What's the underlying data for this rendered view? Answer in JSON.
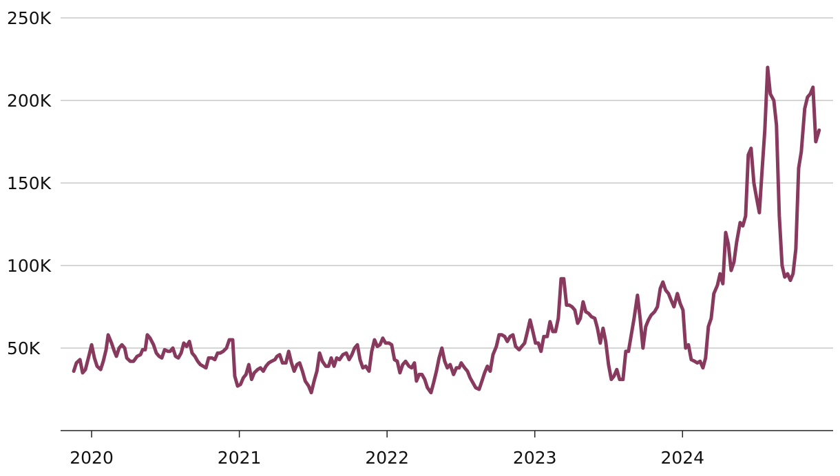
{
  "chart_data": {
    "type": "line",
    "x": [
      2019.879,
      2019.897,
      2019.921,
      2019.939,
      2019.958,
      2019.981,
      2020.0,
      2020.019,
      2020.037,
      2020.061,
      2020.079,
      2020.098,
      2020.112,
      2020.135,
      2020.154,
      2020.168,
      2020.186,
      2020.205,
      2020.224,
      2020.238,
      2020.261,
      2020.284,
      2020.308,
      2020.331,
      2020.345,
      2020.363,
      2020.377,
      2020.396,
      2020.419,
      2020.438,
      2020.457,
      2020.475,
      2020.494,
      2020.517,
      2020.531,
      2020.55,
      2020.568,
      2020.587,
      2020.606,
      2020.624,
      2020.643,
      2020.662,
      2020.68,
      2020.699,
      2020.718,
      2020.736,
      2020.755,
      2020.774,
      2020.792,
      2020.815,
      2020.834,
      2020.853,
      2020.871,
      2020.89,
      2020.913,
      2020.932,
      2020.955,
      2020.969,
      2020.988,
      2021.008,
      2021.027,
      2021.045,
      2021.064,
      2021.083,
      2021.101,
      2021.124,
      2021.143,
      2021.162,
      2021.18,
      2021.199,
      2021.218,
      2021.241,
      2021.255,
      2021.273,
      2021.292,
      2021.315,
      2021.334,
      2021.353,
      2021.371,
      2021.39,
      2021.408,
      2021.427,
      2021.446,
      2021.469,
      2021.487,
      2021.506,
      2021.525,
      2021.543,
      2021.562,
      2021.585,
      2021.604,
      2021.622,
      2021.641,
      2021.659,
      2021.678,
      2021.701,
      2021.724,
      2021.743,
      2021.762,
      2021.78,
      2021.799,
      2021.817,
      2021.836,
      2021.855,
      2021.878,
      2021.896,
      2021.915,
      2021.934,
      2021.952,
      2021.971,
      2021.99,
      2022.013,
      2022.031,
      2022.05,
      2022.069,
      2022.087,
      2022.106,
      2022.125,
      2022.148,
      2022.166,
      2022.185,
      2022.199,
      2022.217,
      2022.236,
      2022.255,
      2022.273,
      2022.297,
      2022.315,
      2022.334,
      2022.352,
      2022.371,
      2022.39,
      2022.408,
      2022.427,
      2022.45,
      2022.469,
      2022.488,
      2022.502,
      2022.525,
      2022.544,
      2022.562,
      2022.581,
      2022.6,
      2022.623,
      2022.642,
      2022.66,
      2022.679,
      2022.698,
      2022.717,
      2022.74,
      2022.758,
      2022.777,
      2022.796,
      2022.814,
      2022.833,
      2022.852,
      2022.87,
      2022.894,
      2022.912,
      2022.931,
      2022.95,
      2022.968,
      2022.987,
      2023.005,
      2023.024,
      2023.042,
      2023.061,
      2023.084,
      2023.103,
      2023.122,
      2023.14,
      2023.159,
      2023.178,
      2023.196,
      2023.215,
      2023.234,
      2023.252,
      2023.271,
      2023.29,
      2023.308,
      2023.327,
      2023.345,
      2023.364,
      2023.383,
      2023.406,
      2023.424,
      2023.443,
      2023.462,
      2023.48,
      2023.499,
      2023.518,
      2023.536,
      2023.555,
      2023.574,
      2023.597,
      2023.616,
      2023.634,
      2023.653,
      2023.672,
      2023.695,
      2023.713,
      2023.732,
      2023.751,
      2023.769,
      2023.788,
      2023.811,
      2023.83,
      2023.849,
      2023.867,
      2023.886,
      2023.905,
      2023.923,
      2023.942,
      2023.965,
      2023.984,
      2024.003,
      2024.021,
      2024.04,
      2024.059,
      2024.082,
      2024.1,
      2024.119,
      2024.138,
      2024.156,
      2024.175,
      2024.194,
      2024.212,
      2024.236,
      2024.254,
      2024.273,
      2024.292,
      2024.31,
      2024.329,
      2024.348,
      2024.366,
      2024.39,
      2024.408,
      2024.427,
      2024.445,
      2024.464,
      2024.483,
      2024.501,
      2024.52,
      2024.538,
      2024.557,
      2024.576,
      2024.594,
      2024.618,
      2024.636,
      2024.655,
      2024.674,
      2024.692,
      2024.711,
      2024.73,
      2024.748,
      2024.767,
      2024.786,
      2024.804,
      2024.827,
      2024.846,
      2024.865,
      2024.883,
      2024.902,
      2024.925
    ],
    "series": [
      {
        "color": "#873a5e",
        "values": [
          36000,
          41000,
          43000,
          35000,
          37000,
          45000,
          52000,
          44000,
          39000,
          37000,
          42000,
          49000,
          58000,
          53000,
          48000,
          45000,
          50000,
          52000,
          50000,
          44000,
          42000,
          42000,
          45000,
          46000,
          49000,
          49000,
          58000,
          56000,
          52000,
          47000,
          45000,
          44000,
          49000,
          48000,
          48000,
          50000,
          45000,
          44000,
          47000,
          53000,
          51000,
          54000,
          47000,
          45000,
          42000,
          40000,
          39000,
          38000,
          44000,
          44000,
          43000,
          47000,
          47000,
          48000,
          50000,
          55000,
          55000,
          33000,
          27000,
          28000,
          32000,
          34000,
          40000,
          31000,
          35000,
          37000,
          38000,
          36000,
          39000,
          41000,
          42000,
          43000,
          45000,
          46000,
          41000,
          41000,
          48000,
          41000,
          36000,
          40000,
          41000,
          36000,
          30000,
          27000,
          23000,
          30000,
          36000,
          47000,
          42000,
          39000,
          39000,
          44000,
          39000,
          44000,
          43000,
          46000,
          47000,
          43000,
          46000,
          50000,
          52000,
          43000,
          38000,
          39000,
          36000,
          48000,
          55000,
          51000,
          52000,
          56000,
          53000,
          53000,
          52000,
          43000,
          42000,
          35000,
          40000,
          42000,
          39000,
          38000,
          41000,
          30000,
          34000,
          34000,
          31000,
          26000,
          23000,
          29000,
          36000,
          44000,
          50000,
          42000,
          38000,
          40000,
          34000,
          38000,
          38000,
          41000,
          38000,
          36000,
          32000,
          29000,
          26000,
          25000,
          30000,
          35000,
          39000,
          36000,
          46000,
          51000,
          58000,
          58000,
          57000,
          54000,
          57000,
          58000,
          51000,
          49000,
          51000,
          53000,
          60000,
          67000,
          60000,
          53000,
          53000,
          48000,
          57000,
          57000,
          66000,
          60000,
          60000,
          68000,
          92000,
          92000,
          76000,
          76000,
          75000,
          73000,
          65000,
          68000,
          78000,
          72000,
          71000,
          69000,
          68000,
          62000,
          53000,
          62000,
          54000,
          40000,
          31000,
          33000,
          37000,
          31000,
          31000,
          48000,
          48000,
          58000,
          68000,
          82000,
          68000,
          50000,
          63000,
          67000,
          70000,
          72000,
          75000,
          86000,
          90000,
          85000,
          83000,
          79000,
          75000,
          83000,
          77000,
          73000,
          50000,
          52000,
          43000,
          42000,
          41000,
          42000,
          38000,
          44000,
          63000,
          68000,
          83000,
          88000,
          95000,
          89000,
          120000,
          113000,
          97000,
          102000,
          114000,
          126000,
          124000,
          130000,
          167000,
          171000,
          150000,
          141000,
          132000,
          157000,
          182000,
          220000,
          204000,
          200000,
          185000,
          130000,
          100000,
          93000,
          95000,
          91000,
          95000,
          110000,
          159000,
          169000,
          195000,
          202000,
          204000,
          208000,
          175000,
          182000
        ]
      }
    ],
    "xlim": [
      2019.79,
      2025.01
    ],
    "xticks": [
      2020,
      2021,
      2022,
      2023,
      2024
    ],
    "ylim": [
      0,
      250000
    ],
    "yticks": [
      {
        "value": 50000,
        "label": "50K"
      },
      {
        "value": 100000,
        "label": "100K"
      },
      {
        "value": 150000,
        "label": "150K"
      },
      {
        "value": 200000,
        "label": "200K"
      },
      {
        "value": 250000,
        "label": "250K"
      }
    ],
    "grid": true
  }
}
